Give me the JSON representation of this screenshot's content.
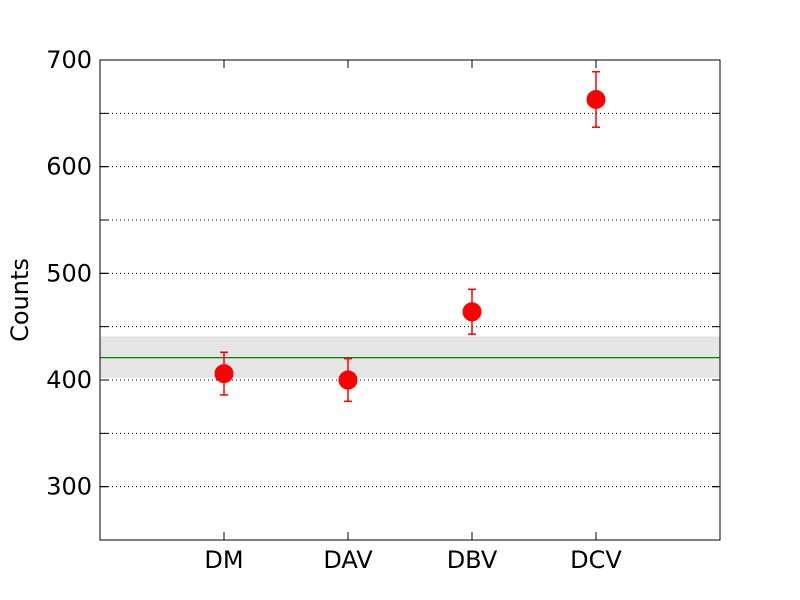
{
  "chart_data": {
    "type": "scatter",
    "title": "",
    "xlabel": "",
    "ylabel": "Counts",
    "categories": [
      "DM",
      "DAV",
      "DBV",
      "DCV"
    ],
    "series": [
      {
        "values": [
          406,
          400,
          464,
          663
        ],
        "errors": [
          20,
          20,
          21,
          26
        ],
        "color": "#ff0000",
        "marker": "circle"
      }
    ],
    "reference_line": {
      "value": 421,
      "color": "#008000"
    },
    "reference_band": {
      "low": 402,
      "high": 441,
      "color": "#e5e5e5"
    },
    "ylim": [
      250,
      700
    ],
    "xlim": [
      0,
      5
    ],
    "category_positions": [
      1,
      2,
      3,
      4
    ],
    "yticks": [
      300,
      400,
      500,
      600,
      700
    ],
    "ygrid_values": [
      300,
      350,
      400,
      450,
      500,
      550,
      600,
      650
    ],
    "grid": "horizontal-dotted",
    "legend": "none"
  }
}
